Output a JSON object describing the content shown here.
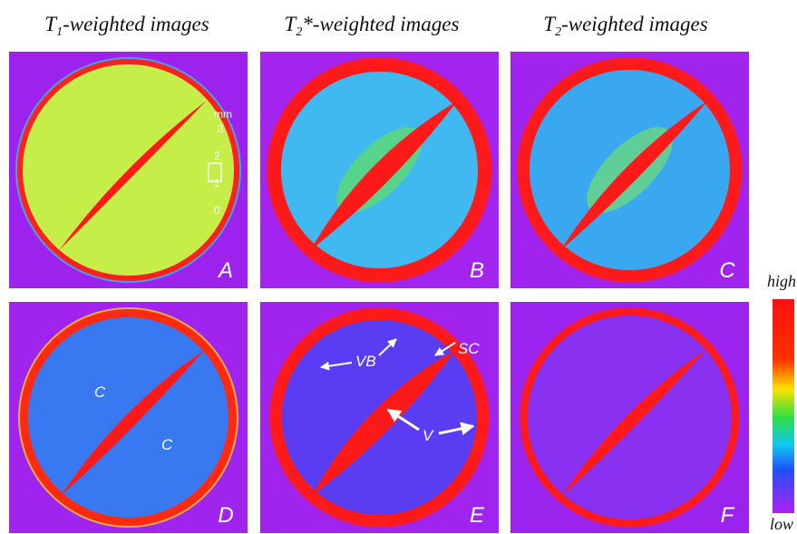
{
  "headers": [
    {
      "symbol": "T",
      "subscript": "1",
      "rest": "-weighted images"
    },
    {
      "symbol": "T",
      "subscript": "2",
      "rest": "*-weighted images"
    },
    {
      "symbol": "T",
      "subscript": "2",
      "rest": "-weighted images"
    }
  ],
  "panels": [
    {
      "letter": "A"
    },
    {
      "letter": "B"
    },
    {
      "letter": "C"
    },
    {
      "letter": "D"
    },
    {
      "letter": "E"
    },
    {
      "letter": "F"
    }
  ],
  "scale": {
    "unit": "mm",
    "marks": [
      "3",
      "2",
      "1",
      "0"
    ]
  },
  "annotations": {
    "panel_d": [
      "C",
      "C"
    ],
    "panel_e": {
      "sc": "SC",
      "vb": "VB",
      "v": "V"
    }
  },
  "colorbar": {
    "high": "high",
    "low": "low"
  }
}
